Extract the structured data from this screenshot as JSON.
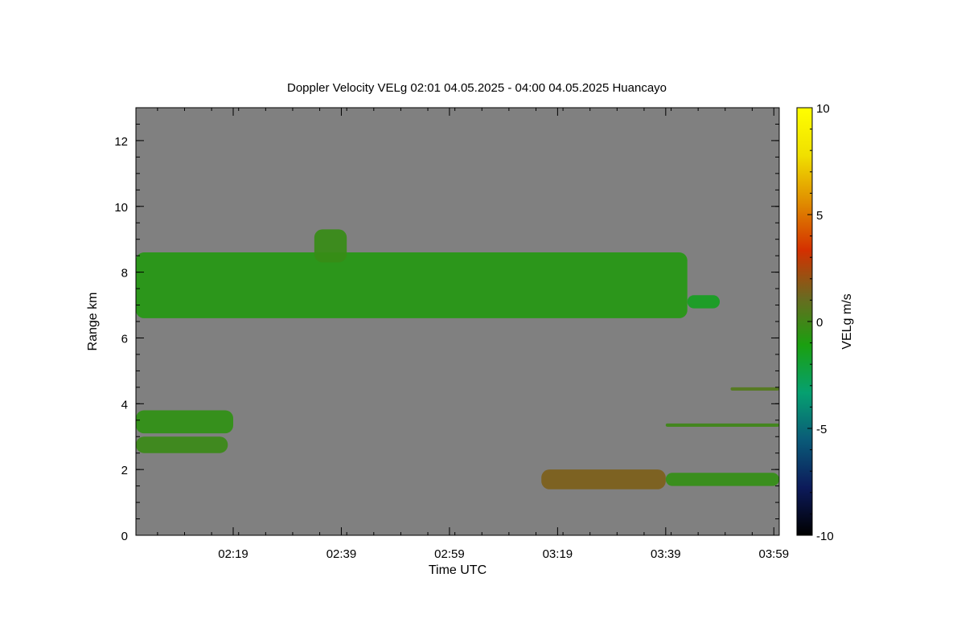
{
  "chart_data": {
    "type": "heatmap",
    "title": "Doppler Velocity VELg   02:01 04.05.2025 - 04:00 04.05.2025 Huancayo",
    "xlabel": "Time UTC",
    "ylabel": "Range km",
    "x_range": [
      "02:01",
      "04:00"
    ],
    "xlim_minutes": [
      121,
      240
    ],
    "ylim": [
      0,
      13
    ],
    "x_ticks": [
      {
        "label": "02:19",
        "minutes": 139
      },
      {
        "label": "02:39",
        "minutes": 159
      },
      {
        "label": "02:59",
        "minutes": 179
      },
      {
        "label": "03:19",
        "minutes": 199
      },
      {
        "label": "03:39",
        "minutes": 219
      },
      {
        "label": "03:59",
        "minutes": 239
      }
    ],
    "y_ticks": [
      {
        "label": "0",
        "value": 0
      },
      {
        "label": "2",
        "value": 2
      },
      {
        "label": "4",
        "value": 4
      },
      {
        "label": "6",
        "value": 6
      },
      {
        "label": "8",
        "value": 8
      },
      {
        "label": "10",
        "value": 10
      },
      {
        "label": "12",
        "value": 12
      }
    ],
    "colorbar": {
      "label": "VELg m/s",
      "range": [
        -10,
        10
      ],
      "ticks": [
        {
          "label": "10",
          "value": 10
        },
        {
          "label": "5",
          "value": 5
        },
        {
          "label": "0",
          "value": 0
        },
        {
          "label": "-5",
          "value": -5
        },
        {
          "label": "-10",
          "value": -10
        }
      ],
      "stops": [
        "#000000",
        "#0c1a5a",
        "#0a5a78",
        "#06a070",
        "#1aa010",
        "#6a6a20",
        "#d43000",
        "#e08c00",
        "#f0e000",
        "#ffff00"
      ]
    },
    "background_color": "#808080",
    "regions": [
      {
        "t_start": 121,
        "t_end": 223,
        "r_bottom": 6.6,
        "r_top": 8.6,
        "velocity": -0.8
      },
      {
        "t_start": 154,
        "t_end": 160,
        "r_bottom": 8.3,
        "r_top": 9.3,
        "velocity": -0.3
      },
      {
        "t_start": 223,
        "t_end": 229,
        "r_bottom": 6.9,
        "r_top": 7.3,
        "velocity": -1.5
      },
      {
        "t_start": 121,
        "t_end": 139,
        "r_bottom": 3.1,
        "r_top": 3.8,
        "velocity": -0.5
      },
      {
        "t_start": 121,
        "t_end": 138,
        "r_bottom": 2.5,
        "r_top": 3.0,
        "velocity": -0.2
      },
      {
        "t_start": 196,
        "t_end": 219,
        "r_bottom": 1.4,
        "r_top": 2.0,
        "velocity": 1.5
      },
      {
        "t_start": 219,
        "t_end": 240,
        "r_bottom": 1.5,
        "r_top": 1.9,
        "velocity": -0.4
      },
      {
        "t_start": 219,
        "t_end": 240,
        "r_bottom": 3.3,
        "r_top": 3.4,
        "velocity": -0.1
      },
      {
        "t_start": 231,
        "t_end": 240,
        "r_bottom": 4.4,
        "r_top": 4.5,
        "velocity": 0.5
      }
    ]
  }
}
